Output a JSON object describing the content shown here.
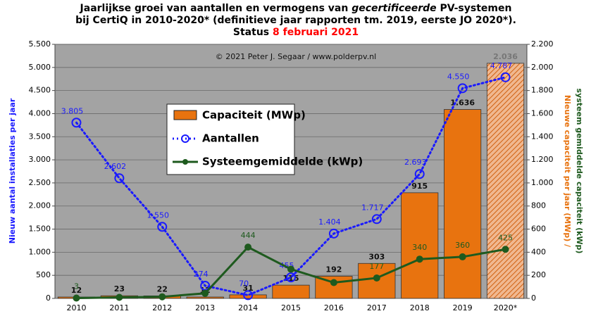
{
  "chart_data": {
    "type": "bar",
    "title": [
      [
        "Jaarlijkse groei van aantallen en vermogens van ",
        "gecertificeerde",
        " PV-systemen"
      ],
      [
        "bij CertiQ in 2010-2020* (definitieve jaar rapporten tm. 2019, eerste JO 2020*)."
      ],
      [
        "Status ",
        "8 februari 2021"
      ]
    ],
    "annotation": "© 2021 Peter J. Segaar / www.polderpv.nl",
    "y_label": "Nieuw aantal installaties per jaar",
    "y2_label": [
      "Nieuwe capaciteit per jaar (MWp) /",
      "systeem gemiddelde capaciteit (kWp)"
    ],
    "categories": [
      "2010",
      "2011",
      "2012",
      "2013",
      "2014",
      "2015",
      "2016",
      "2017",
      "2018",
      "2019",
      "2020*"
    ],
    "series": [
      {
        "name": "Capaciteit (MWp)",
        "type": "bar",
        "axis": "y2",
        "color": "#e8730f",
        "values": [
          12,
          23,
          22,
          12,
          31,
          115,
          192,
          303,
          915,
          1636,
          2036
        ],
        "value_labels": [
          "12",
          "23",
          "22",
          "12",
          "31",
          "115",
          "192",
          "303",
          "915",
          "1.636",
          "2.036"
        ]
      },
      {
        "name": "Aantallen",
        "type": "line",
        "axis": "y",
        "color": "#1a1aff",
        "values": [
          3805,
          2602,
          1550,
          274,
          70,
          455,
          1404,
          1717,
          2693,
          4550,
          4787
        ],
        "value_labels": [
          "3.805",
          "2.602",
          "1.550",
          "274",
          "70",
          "455",
          "1.404",
          "1.717",
          "2.693",
          "4.550",
          "4.787"
        ]
      },
      {
        "name": "Systeemgemiddelde (kWp)",
        "type": "line",
        "axis": "y2",
        "color": "#1e5a1e",
        "values": [
          3,
          9,
          14,
          44,
          444,
          253,
          137,
          177,
          340,
          360,
          425
        ],
        "value_labels": [
          "3",
          null,
          null,
          null,
          "444",
          null,
          null,
          "177",
          "340",
          "360",
          "425"
        ]
      }
    ],
    "ylim": [
      0,
      5500
    ],
    "yticks": [
      0,
      {
        "value": 500,
        "label": "500"
      },
      {
        "value": 1000,
        "label": "1.000"
      },
      {
        "value": 1500,
        "label": "1.500"
      },
      {
        "value": 2000,
        "label": "2.000"
      },
      {
        "value": 2500,
        "label": "2.500"
      },
      {
        "value": 3000,
        "label": "3.000"
      },
      {
        "value": 3500,
        "label": "3.500"
      },
      {
        "value": 4000,
        "label": "4.000"
      },
      {
        "value": 4500,
        "label": "4.500"
      },
      {
        "value": 5000,
        "label": "5.000"
      },
      {
        "value": 5500,
        "label": "5.500"
      }
    ],
    "y2lim": [
      0,
      2200
    ],
    "y2ticks": [
      0,
      200,
      400,
      600,
      800,
      {
        "value": 1000,
        "label": "1.000"
      },
      {
        "value": 1200,
        "label": "1.200"
      },
      {
        "value": 1400,
        "label": "1.400"
      },
      {
        "value": 1600,
        "label": "1.600"
      },
      {
        "value": 1800,
        "label": "1.800"
      },
      {
        "value": 2000,
        "label": "2.000"
      },
      {
        "value": 2200,
        "label": "2.200"
      }
    ],
    "grid": true
  }
}
